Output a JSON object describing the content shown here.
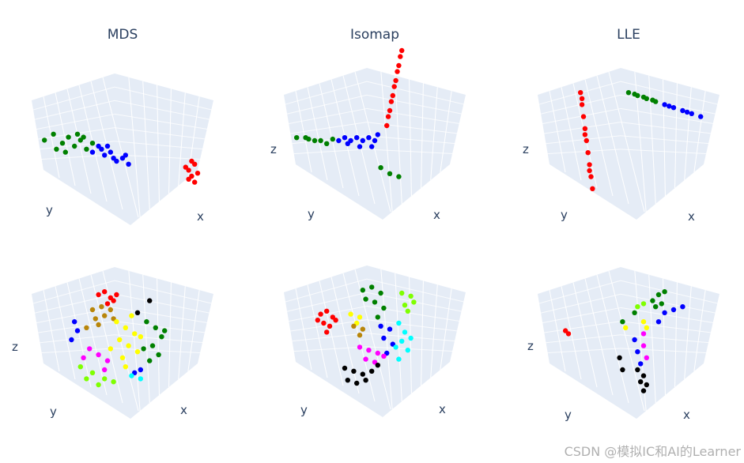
{
  "watermark": "CSDN @模拟IC和AI的Learner",
  "chart_data": [
    {
      "type": "scatter3d",
      "title": "MDS",
      "axis_labels": {
        "x": "x",
        "y": "y",
        "z": ""
      },
      "background": "#e5ecf6",
      "series": [
        {
          "color": "#008000",
          "points": [
            [
              -2.6,
              0.2
            ],
            [
              -2.3,
              0.4
            ],
            [
              -2.0,
              0.1
            ],
            [
              -1.8,
              0.3
            ],
            [
              -1.6,
              0.0
            ],
            [
              -1.4,
              0.2
            ],
            [
              -1.2,
              -0.1
            ],
            [
              -1.0,
              0.1
            ],
            [
              -2.2,
              -0.1
            ],
            [
              -1.5,
              0.4
            ],
            [
              -1.9,
              -0.2
            ],
            [
              -1.3,
              0.3
            ]
          ]
        },
        {
          "color": "#0000ff",
          "points": [
            [
              -1.0,
              -0.2
            ],
            [
              -0.8,
              0.0
            ],
            [
              -0.6,
              -0.3
            ],
            [
              -0.4,
              -0.2
            ],
            [
              -0.2,
              -0.5
            ],
            [
              0.0,
              -0.4
            ],
            [
              0.2,
              -0.6
            ],
            [
              -0.7,
              -0.1
            ],
            [
              -0.3,
              -0.4
            ],
            [
              0.1,
              -0.3
            ],
            [
              -0.5,
              0.0
            ]
          ]
        },
        {
          "color": "#ff0000",
          "points": [
            [
              2.2,
              -0.8
            ],
            [
              2.4,
              -0.6
            ],
            [
              2.3,
              -1.0
            ],
            [
              2.5,
              -0.9
            ],
            [
              2.1,
              -0.7
            ],
            [
              2.4,
              -1.2
            ],
            [
              2.3,
              -0.5
            ],
            [
              2.2,
              -1.1
            ]
          ]
        }
      ]
    },
    {
      "type": "scatter3d",
      "title": "Isomap",
      "axis_labels": {
        "x": "x",
        "y": "y",
        "z": "z"
      },
      "background": "#e5ecf6",
      "series": [
        {
          "color": "#008000",
          "points": [
            [
              -2.6,
              0.1
            ],
            [
              -2.3,
              0.1
            ],
            [
              -2.0,
              0.0
            ],
            [
              -1.8,
              0.0
            ],
            [
              -1.6,
              -0.1
            ],
            [
              0.2,
              -0.9
            ],
            [
              0.5,
              -1.1
            ],
            [
              0.8,
              -1.2
            ],
            [
              -1.4,
              0.05
            ],
            [
              -2.2,
              0.05
            ]
          ]
        },
        {
          "color": "#0000ff",
          "points": [
            [
              -1.2,
              0.0
            ],
            [
              -1.0,
              0.1
            ],
            [
              -0.8,
              0.0
            ],
            [
              -0.6,
              0.1
            ],
            [
              -0.4,
              0.0
            ],
            [
              -0.2,
              0.1
            ],
            [
              0.0,
              0.0
            ],
            [
              -0.9,
              -0.1
            ],
            [
              -0.5,
              -0.2
            ],
            [
              -0.1,
              -0.2
            ],
            [
              0.1,
              0.2
            ]
          ]
        },
        {
          "color": "#ff0000",
          "points": [
            [
              0.4,
              0.5
            ],
            [
              0.5,
              1.0
            ],
            [
              0.6,
              1.5
            ],
            [
              0.7,
              2.0
            ],
            [
              0.8,
              2.5
            ],
            [
              0.9,
              3.0
            ],
            [
              0.45,
              0.8
            ],
            [
              0.55,
              1.3
            ],
            [
              0.65,
              1.8
            ],
            [
              0.75,
              2.3
            ],
            [
              0.85,
              2.8
            ]
          ]
        }
      ]
    },
    {
      "type": "scatter3d",
      "title": "LLE",
      "axis_labels": {
        "x": "x",
        "y": "y",
        "z": "z"
      },
      "background": "#e5ecf6",
      "series": [
        {
          "color": "#ff0000",
          "points": [
            [
              -1.6,
              1.6
            ],
            [
              -1.55,
              1.2
            ],
            [
              -1.5,
              0.8
            ],
            [
              -1.45,
              0.4
            ],
            [
              -1.4,
              0.0
            ],
            [
              -1.35,
              -0.4
            ],
            [
              -1.3,
              -0.8
            ],
            [
              -1.25,
              -1.2
            ],
            [
              -1.2,
              -1.6
            ],
            [
              -1.55,
              1.4
            ],
            [
              -1.45,
              0.2
            ],
            [
              -1.3,
              -1.0
            ]
          ]
        },
        {
          "color": "#008000",
          "points": [
            [
              0.0,
              1.6
            ],
            [
              0.3,
              1.5
            ],
            [
              0.6,
              1.4
            ],
            [
              0.9,
              1.3
            ],
            [
              0.2,
              1.55
            ],
            [
              0.5,
              1.45
            ],
            [
              0.8,
              1.35
            ]
          ]
        },
        {
          "color": "#0000ff",
          "points": [
            [
              1.2,
              1.2
            ],
            [
              1.5,
              1.1
            ],
            [
              1.8,
              1.0
            ],
            [
              2.1,
              0.9
            ],
            [
              2.4,
              0.8
            ],
            [
              1.35,
              1.15
            ],
            [
              1.95,
              0.95
            ]
          ]
        }
      ]
    },
    {
      "type": "scatter3d",
      "title": "",
      "axis_labels": {
        "x": "x",
        "y": "y",
        "z": "z"
      },
      "background": "#e5ecf6",
      "series": [
        {
          "color": "#ff0000",
          "points": [
            [
              -0.8,
              1.5
            ],
            [
              -0.6,
              1.6
            ],
            [
              -0.4,
              1.4
            ],
            [
              -0.2,
              1.5
            ],
            [
              -0.5,
              1.2
            ],
            [
              -0.3,
              1.3
            ]
          ]
        },
        {
          "color": "#b8860b",
          "points": [
            [
              -1.0,
              1.0
            ],
            [
              -0.7,
              1.1
            ],
            [
              -0.4,
              1.0
            ],
            [
              -0.9,
              0.7
            ],
            [
              -0.6,
              0.8
            ],
            [
              -0.3,
              0.7
            ],
            [
              -1.2,
              0.4
            ],
            [
              -0.8,
              0.5
            ]
          ]
        },
        {
          "color": "#ffff00",
          "points": [
            [
              -0.2,
              0.6
            ],
            [
              0.1,
              0.4
            ],
            [
              0.4,
              0.2
            ],
            [
              -0.1,
              0.0
            ],
            [
              0.2,
              -0.2
            ],
            [
              0.5,
              -0.4
            ],
            [
              0.0,
              -0.6
            ],
            [
              0.3,
              0.8
            ],
            [
              -0.4,
              -0.3
            ],
            [
              0.6,
              0.1
            ],
            [
              0.1,
              -0.9
            ]
          ]
        },
        {
          "color": "#008000",
          "points": [
            [
              0.8,
              0.6
            ],
            [
              1.1,
              0.4
            ],
            [
              1.3,
              0.1
            ],
            [
              1.0,
              -0.2
            ],
            [
              1.2,
              -0.5
            ],
            [
              0.9,
              -0.7
            ],
            [
              1.4,
              0.3
            ],
            [
              0.7,
              -0.3
            ]
          ]
        },
        {
          "color": "#0000ff",
          "points": [
            [
              -1.6,
              0.6
            ],
            [
              -1.5,
              0.3
            ],
            [
              -1.7,
              0.0
            ],
            [
              0.6,
              -1.0
            ],
            [
              0.4,
              -1.1
            ]
          ]
        },
        {
          "color": "#ff00ff",
          "points": [
            [
              -1.1,
              -0.3
            ],
            [
              -0.8,
              -0.5
            ],
            [
              -0.5,
              -0.7
            ],
            [
              -1.3,
              -0.6
            ],
            [
              -0.6,
              -1.0
            ]
          ]
        },
        {
          "color": "#7fff00",
          "points": [
            [
              -1.4,
              -0.9
            ],
            [
              -1.0,
              -1.1
            ],
            [
              -0.6,
              -1.3
            ],
            [
              -1.2,
              -1.3
            ],
            [
              -0.8,
              -1.5
            ],
            [
              -0.3,
              -1.4
            ]
          ]
        },
        {
          "color": "#00ffff",
          "points": [
            [
              0.6,
              -1.3
            ],
            [
              0.3,
              -1.2
            ]
          ]
        },
        {
          "color": "#000000",
          "points": [
            [
              0.9,
              1.3
            ],
            [
              0.5,
              0.9
            ]
          ]
        }
      ]
    },
    {
      "type": "scatter3d",
      "title": "",
      "axis_labels": {
        "x": "x",
        "y": "y",
        "z": "z"
      },
      "background": "#e5ecf6",
      "series": [
        {
          "color": "#ff0000",
          "points": [
            [
              -1.8,
              0.8
            ],
            [
              -1.6,
              0.9
            ],
            [
              -1.4,
              0.7
            ],
            [
              -1.7,
              0.5
            ],
            [
              -1.5,
              0.4
            ],
            [
              -1.3,
              0.6
            ],
            [
              -1.6,
              0.2
            ],
            [
              -1.9,
              0.6
            ]
          ]
        },
        {
          "color": "#008000",
          "points": [
            [
              -0.4,
              1.6
            ],
            [
              -0.1,
              1.7
            ],
            [
              0.2,
              1.5
            ],
            [
              -0.3,
              1.3
            ],
            [
              0.0,
              1.2
            ],
            [
              0.3,
              1.0
            ],
            [
              0.1,
              0.7
            ]
          ]
        },
        {
          "color": "#7fff00",
          "points": [
            [
              0.9,
              1.5
            ],
            [
              1.2,
              1.4
            ],
            [
              1.0,
              1.1
            ],
            [
              1.3,
              1.2
            ],
            [
              1.1,
              0.9
            ]
          ]
        },
        {
          "color": "#ffff00",
          "points": [
            [
              -0.8,
              0.8
            ],
            [
              -0.5,
              0.7
            ],
            [
              -0.6,
              0.5
            ]
          ]
        },
        {
          "color": "#b8860b",
          "points": [
            [
              -0.7,
              0.4
            ],
            [
              -0.4,
              0.3
            ],
            [
              -0.5,
              0.1
            ]
          ]
        },
        {
          "color": "#0000ff",
          "points": [
            [
              0.2,
              0.4
            ],
            [
              0.5,
              0.3
            ],
            [
              0.3,
              0.0
            ],
            [
              0.6,
              -0.2
            ],
            [
              0.4,
              -0.5
            ]
          ]
        },
        {
          "color": "#00ffff",
          "points": [
            [
              0.8,
              0.5
            ],
            [
              1.0,
              0.2
            ],
            [
              0.9,
              -0.1
            ],
            [
              1.1,
              -0.4
            ],
            [
              0.8,
              -0.7
            ],
            [
              1.2,
              0.0
            ],
            [
              0.7,
              -0.3
            ]
          ]
        },
        {
          "color": "#ff00ff",
          "points": [
            [
              -0.5,
              -0.3
            ],
            [
              -0.2,
              -0.4
            ],
            [
              0.1,
              -0.5
            ],
            [
              -0.3,
              -0.7
            ],
            [
              0.0,
              -0.8
            ],
            [
              0.3,
              -0.6
            ]
          ]
        },
        {
          "color": "#000000",
          "points": [
            [
              -1.0,
              -1.0
            ],
            [
              -0.7,
              -1.1
            ],
            [
              -0.4,
              -1.2
            ],
            [
              -0.1,
              -1.1
            ],
            [
              -0.9,
              -1.4
            ],
            [
              -0.6,
              -1.5
            ],
            [
              -0.3,
              -1.4
            ],
            [
              0.1,
              -0.9
            ]
          ]
        }
      ]
    },
    {
      "type": "scatter3d",
      "title": "",
      "axis_labels": {
        "x": "x",
        "y": "y",
        "z": "z"
      },
      "background": "#e5ecf6",
      "series": [
        {
          "color": "#ff0000",
          "points": [
            [
              -2.0,
              0.2
            ],
            [
              -2.1,
              0.3
            ]
          ]
        },
        {
          "color": "#008000",
          "points": [
            [
              0.8,
              1.3
            ],
            [
              1.0,
              1.5
            ],
            [
              1.2,
              1.6
            ],
            [
              0.9,
              1.1
            ],
            [
              1.1,
              1.2
            ],
            [
              0.2,
              0.9
            ],
            [
              -0.2,
              0.6
            ]
          ]
        },
        {
          "color": "#7fff00",
          "points": [
            [
              0.3,
              1.1
            ],
            [
              0.5,
              1.2
            ]
          ]
        },
        {
          "color": "#0000ff",
          "points": [
            [
              1.2,
              0.9
            ],
            [
              1.5,
              1.0
            ],
            [
              1.8,
              1.1
            ],
            [
              1.0,
              0.6
            ],
            [
              0.2,
              0.0
            ],
            [
              0.3,
              -0.4
            ],
            [
              0.4,
              -0.8
            ]
          ]
        },
        {
          "color": "#ffff00",
          "points": [
            [
              0.5,
              0.6
            ],
            [
              0.6,
              0.4
            ],
            [
              -0.1,
              0.4
            ]
          ]
        },
        {
          "color": "#ff00ff",
          "points": [
            [
              0.5,
              0.2
            ],
            [
              0.5,
              -0.2
            ],
            [
              0.6,
              -0.6
            ]
          ]
        },
        {
          "color": "#000000",
          "points": [
            [
              0.3,
              -1.0
            ],
            [
              0.5,
              -1.2
            ],
            [
              0.6,
              -1.5
            ],
            [
              0.5,
              -1.7
            ],
            [
              0.4,
              -1.4
            ],
            [
              -0.3,
              -0.6
            ],
            [
              -0.2,
              -1.0
            ]
          ]
        }
      ]
    }
  ]
}
